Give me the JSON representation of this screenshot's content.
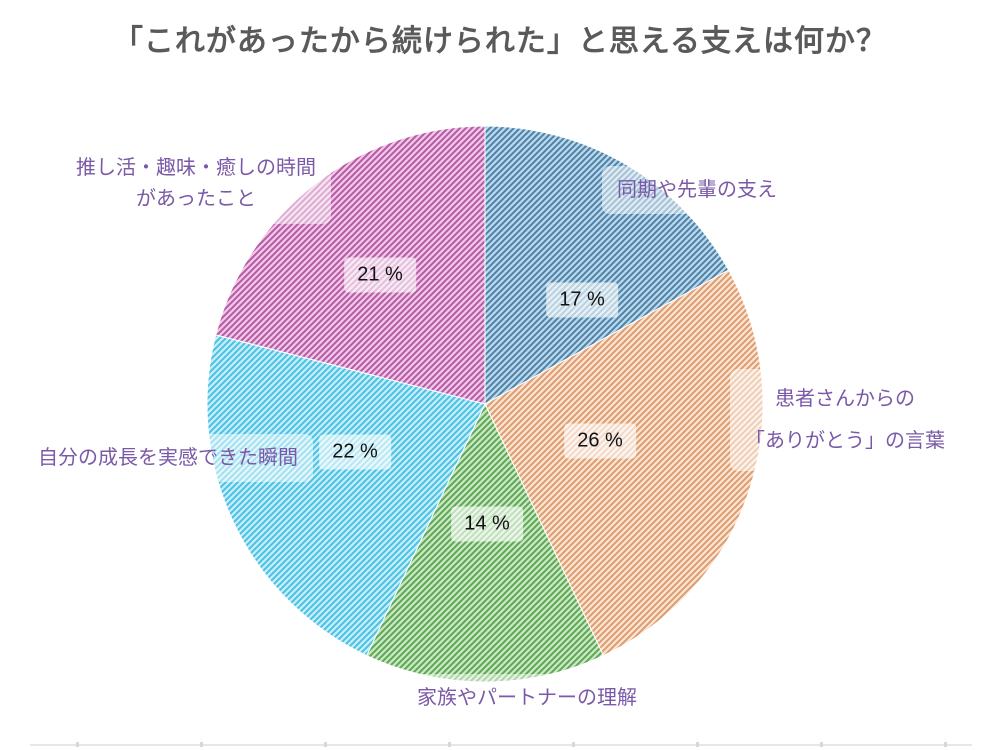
{
  "title": "「これがあったから続けられた」と思える支えは何か？",
  "chart_data": {
    "type": "pie",
    "title": "「これがあったから続けられた」と思える支えは何か？",
    "start_angle": "top",
    "direction": "clockwise",
    "hatch_pattern": "forward-diagonal-stripes",
    "legend_position": "none",
    "percent_label_style": "black text on translucent white box inside slice",
    "category_label_style": "purple text on translucent white box outside slice",
    "slices": [
      {
        "label": "同期や先輩の支え",
        "display_lines": [
          "同期や先輩の支え"
        ],
        "value_pct": 17,
        "pct_text": "17 %",
        "face_color": "#b5d9ed",
        "hatch_color": "#527ea3"
      },
      {
        "label": "患者さんからの「ありがとう」の言葉",
        "display_lines": [
          "患者さんからの",
          "「ありがとう」の言葉"
        ],
        "value_pct": 26,
        "pct_text": "26 %",
        "face_color": "#fae4d1",
        "hatch_color": "#dd9a6e"
      },
      {
        "label": "家族やパートナーの理解",
        "display_lines": [
          "家族やパートナーの理解"
        ],
        "value_pct": 14,
        "pct_text": "14 %",
        "face_color": "#c6e9c0",
        "hatch_color": "#5ea455"
      },
      {
        "label": "自分の成長を実感できた瞬間",
        "display_lines": [
          "自分の成長を実感できた瞬間"
        ],
        "value_pct": 22,
        "pct_text": "22 %",
        "face_color": "#c6edf9",
        "hatch_color": "#45c1e3"
      },
      {
        "label": "推し活・趣味・癒しの時間があったこと",
        "display_lines": [
          "推し活・趣味・癒しの時間",
          "があったこと"
        ],
        "value_pct": 21,
        "pct_text": "21 %",
        "face_color": "#f1c5e9",
        "hatch_color": "#b3599f"
      }
    ]
  },
  "colors": {
    "title_text": "#5a5a5a",
    "category_label_text": "#7a59a8",
    "percent_label_text": "#121212",
    "background": "#ffffff"
  }
}
